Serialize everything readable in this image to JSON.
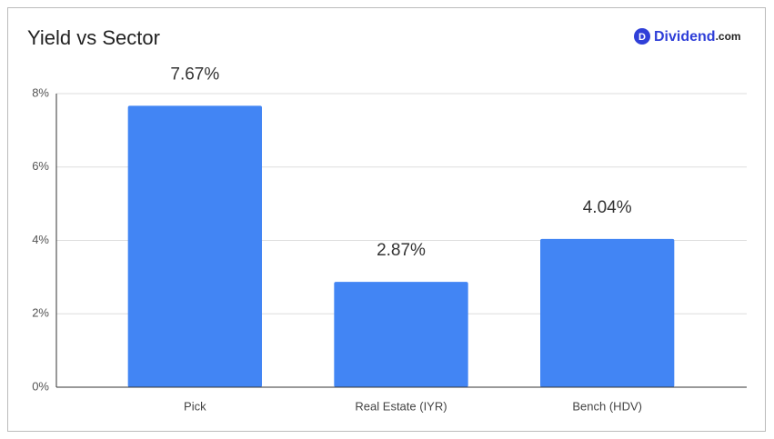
{
  "chart_data": {
    "type": "bar",
    "title": "Yield vs Sector",
    "categories": [
      "Pick",
      "Real Estate (IYR)",
      "Bench (HDV)"
    ],
    "values": [
      7.67,
      2.87,
      4.04
    ],
    "value_labels": [
      "7.67%",
      "2.87%",
      "4.04%"
    ],
    "color": "#4285f4",
    "ylim": [
      0,
      8
    ],
    "yticks": [
      {
        "value": 0,
        "label": "0%"
      },
      {
        "value": 2,
        "label": "2%"
      },
      {
        "value": 4,
        "label": "4%"
      },
      {
        "value": 6,
        "label": "6%"
      },
      {
        "value": 8,
        "label": "8%"
      }
    ],
    "grid": true
  },
  "brand": {
    "icon": "D",
    "name": "Dividend",
    "suffix": ".com"
  }
}
